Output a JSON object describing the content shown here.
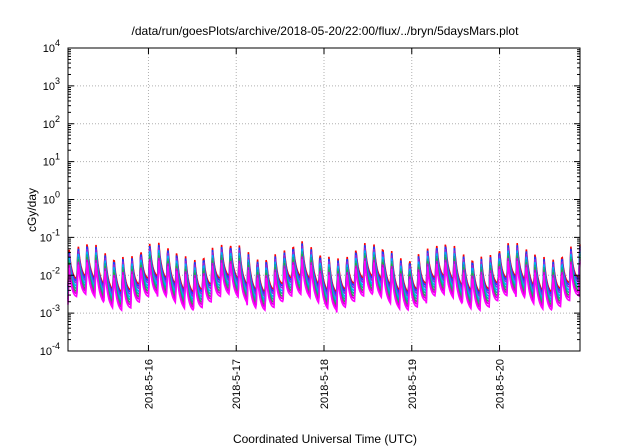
{
  "chart_data": {
    "type": "line",
    "title": "/data/run/goesPlots/archive/2018-05-20/22:00/flux/../bryn/5daysMars.plot",
    "xlabel": "Coordinated Universal Time (UTC)",
    "ylabel": "cGy/day",
    "yscale": "log",
    "ylim": [
      0.0001,
      10000
    ],
    "xlim": [
      "2018-05-15 02:00",
      "2018-05-20 22:00"
    ],
    "x_ticks": [
      "2018-5-16",
      "2018-5-17",
      "2018-5-18",
      "2018-5-19",
      "2018-5-20"
    ],
    "y_ticks": [
      {
        "base": "10",
        "exp": "-4",
        "value": 0.0001
      },
      {
        "base": "10",
        "exp": "-3",
        "value": 0.001
      },
      {
        "base": "10",
        "exp": "-2",
        "value": 0.01
      },
      {
        "base": "10",
        "exp": "-1",
        "value": 0.1
      },
      {
        "base": "10",
        "exp": "0",
        "value": 1
      },
      {
        "base": "10",
        "exp": "1",
        "value": 10
      },
      {
        "base": "10",
        "exp": "2",
        "value": 100
      },
      {
        "base": "10",
        "exp": "3",
        "value": 1000
      },
      {
        "base": "10",
        "exp": "4",
        "value": 10000
      }
    ],
    "grid": true,
    "legend": "none",
    "pattern": {
      "period_hours": 2.45,
      "peak_base": 0.04,
      "trough_base": 0.004,
      "daily_modulation": 0.35
    },
    "series": [
      {
        "color": "#ff0000",
        "scale": 1.25
      },
      {
        "color": "#1a3cff",
        "scale": 1.1
      },
      {
        "color": "#8a2be2",
        "scale": 0.95
      },
      {
        "color": "#00aaff",
        "scale": 0.8
      },
      {
        "color": "#00b3a0",
        "scale": 0.68
      },
      {
        "color": "#2aa84a",
        "scale": 0.58
      },
      {
        "color": "#d000d0",
        "scale": 0.5
      },
      {
        "color": "#ff00ff",
        "scale": 0.42
      }
    ]
  }
}
